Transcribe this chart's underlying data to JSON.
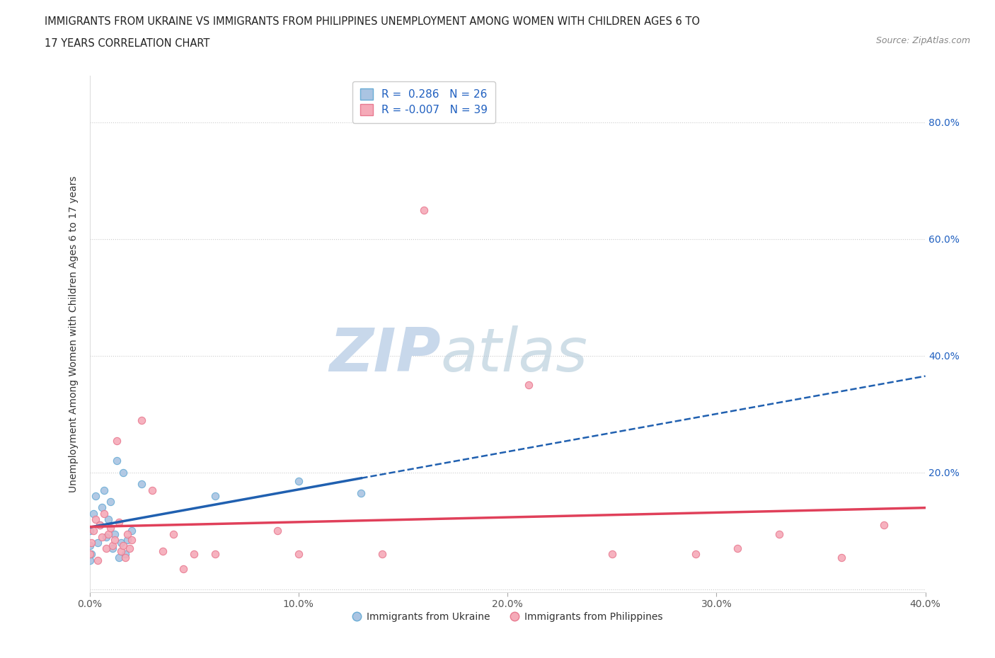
{
  "title_line1": "IMMIGRANTS FROM UKRAINE VS IMMIGRANTS FROM PHILIPPINES UNEMPLOYMENT AMONG WOMEN WITH CHILDREN AGES 6 TO",
  "title_line2": "17 YEARS CORRELATION CHART",
  "source": "Source: ZipAtlas.com",
  "ylabel": "Unemployment Among Women with Children Ages 6 to 17 years",
  "xlim": [
    0.0,
    0.4
  ],
  "ylim": [
    -0.005,
    0.88
  ],
  "xticks": [
    0.0,
    0.1,
    0.2,
    0.3,
    0.4
  ],
  "xtick_labels": [
    "0.0%",
    "10.0%",
    "20.0%",
    "30.0%",
    "40.0%"
  ],
  "yticks": [
    0.0,
    0.2,
    0.4,
    0.6,
    0.8
  ],
  "ytick_labels_right": [
    "",
    "20.0%",
    "40.0%",
    "60.0%",
    "80.0%"
  ],
  "ukraine_color": "#aac4e2",
  "ukraine_edge_color": "#6aadd5",
  "philippines_color": "#f5aab8",
  "philippines_edge_color": "#e87a90",
  "trend_ukraine_color": "#2060b0",
  "trend_philippines_color": "#e0405a",
  "ukraine_R": 0.286,
  "ukraine_N": 26,
  "philippines_R": -0.007,
  "philippines_N": 39,
  "legend_color": "#2060c0",
  "watermark_zip": "ZIP",
  "watermark_atlas": "atlas",
  "ukraine_x": [
    0.0,
    0.0,
    0.0,
    0.001,
    0.002,
    0.003,
    0.004,
    0.005,
    0.006,
    0.007,
    0.008,
    0.009,
    0.01,
    0.011,
    0.012,
    0.013,
    0.014,
    0.015,
    0.016,
    0.017,
    0.018,
    0.02,
    0.025,
    0.06,
    0.1,
    0.13
  ],
  "ukraine_y": [
    0.05,
    0.075,
    0.1,
    0.06,
    0.13,
    0.16,
    0.08,
    0.11,
    0.14,
    0.17,
    0.09,
    0.12,
    0.15,
    0.07,
    0.095,
    0.22,
    0.055,
    0.08,
    0.2,
    0.06,
    0.085,
    0.1,
    0.18,
    0.16,
    0.185,
    0.165
  ],
  "philippines_x": [
    0.0,
    0.001,
    0.002,
    0.003,
    0.004,
    0.005,
    0.006,
    0.007,
    0.008,
    0.009,
    0.01,
    0.011,
    0.012,
    0.013,
    0.014,
    0.015,
    0.016,
    0.017,
    0.018,
    0.019,
    0.02,
    0.025,
    0.03,
    0.035,
    0.04,
    0.045,
    0.05,
    0.06,
    0.09,
    0.1,
    0.14,
    0.16,
    0.21,
    0.25,
    0.29,
    0.31,
    0.33,
    0.36,
    0.38
  ],
  "philippines_y": [
    0.06,
    0.08,
    0.1,
    0.12,
    0.05,
    0.11,
    0.09,
    0.13,
    0.07,
    0.095,
    0.105,
    0.075,
    0.085,
    0.255,
    0.115,
    0.065,
    0.075,
    0.055,
    0.095,
    0.07,
    0.085,
    0.29,
    0.17,
    0.065,
    0.095,
    0.035,
    0.06,
    0.06,
    0.1,
    0.06,
    0.06,
    0.65,
    0.35,
    0.06,
    0.06,
    0.07,
    0.095,
    0.055,
    0.11
  ],
  "background_color": "#ffffff",
  "grid_color": "#cccccc",
  "marker_size": 55,
  "marker_linewidth": 0.8
}
